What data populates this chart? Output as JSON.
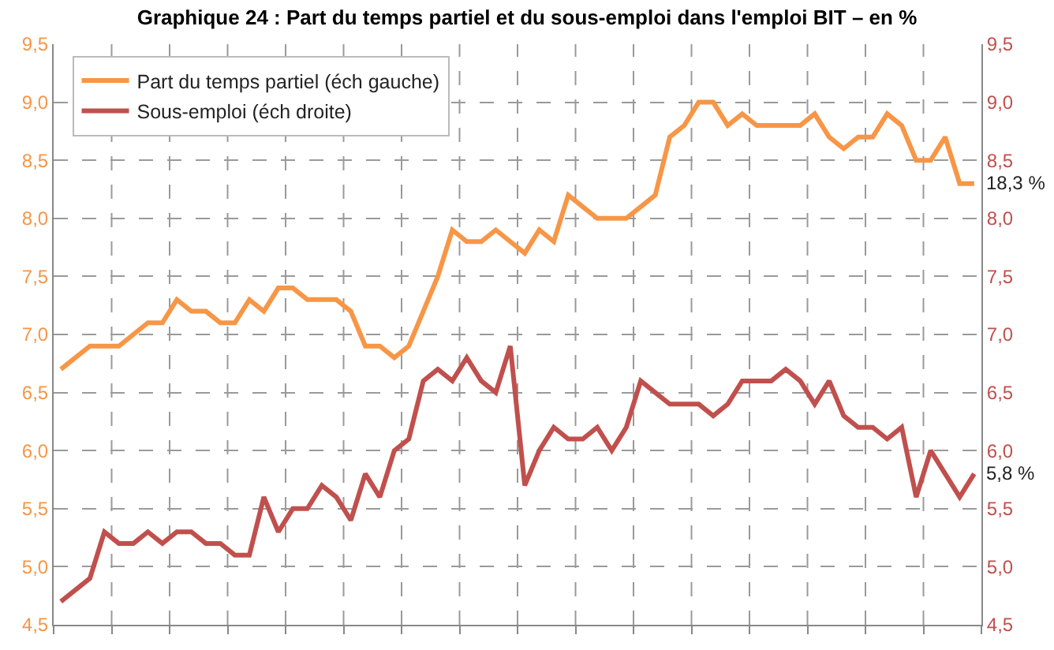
{
  "chart_data": {
    "type": "line",
    "title": "Graphique 24 : Part du temps partiel et du sous-emploi dans l'emploi BIT – en %",
    "categories": [
      null,
      null,
      null,
      null,
      null,
      null,
      null,
      null,
      null,
      null,
      null,
      null,
      null,
      null,
      null,
      null,
      null,
      null,
      null,
      null,
      null,
      null,
      null,
      null,
      null,
      null,
      null,
      null,
      null,
      null,
      null,
      null,
      null,
      null,
      null,
      null,
      null,
      null,
      null,
      null,
      null,
      null,
      null,
      null,
      null,
      null,
      null,
      null,
      null,
      null,
      null,
      null,
      null,
      null,
      null,
      null,
      null,
      null,
      null,
      null,
      null,
      null,
      null,
      null
    ],
    "series": [
      {
        "name": "Part du temps partiel (éch gauche)",
        "color": "#f79646",
        "values": [
          6.7,
          6.8,
          6.9,
          6.9,
          6.9,
          7.0,
          7.1,
          7.1,
          7.3,
          7.2,
          7.2,
          7.1,
          7.1,
          7.3,
          7.2,
          7.4,
          7.4,
          7.3,
          7.3,
          7.3,
          7.2,
          6.9,
          6.9,
          6.8,
          6.9,
          7.2,
          7.5,
          7.9,
          7.8,
          7.8,
          7.9,
          7.8,
          7.7,
          7.9,
          7.8,
          8.2,
          8.1,
          8.0,
          8.0,
          8.0,
          8.1,
          8.2,
          8.7,
          8.8,
          9.0,
          9.0,
          8.8,
          8.9,
          8.8,
          8.8,
          8.8,
          8.8,
          8.9,
          8.7,
          8.6,
          8.7,
          8.7,
          8.9,
          8.8,
          8.5,
          8.5,
          8.7,
          8.3,
          8.3
        ]
      },
      {
        "name": "Sous-emploi (éch droite)",
        "color": "#c0504d",
        "axis": "y2",
        "values": [
          4.7,
          4.8,
          4.9,
          5.3,
          5.2,
          5.2,
          5.3,
          5.2,
          5.3,
          5.3,
          5.2,
          5.2,
          5.1,
          5.1,
          5.6,
          5.3,
          5.5,
          5.5,
          5.7,
          5.6,
          5.4,
          5.8,
          5.6,
          6.0,
          6.1,
          6.6,
          6.7,
          6.6,
          6.8,
          6.6,
          6.5,
          6.9,
          5.7,
          6.0,
          6.2,
          6.1,
          6.1,
          6.2,
          6.0,
          6.2,
          6.6,
          6.5,
          6.4,
          6.4,
          6.4,
          6.3,
          6.4,
          6.6,
          6.6,
          6.6,
          6.7,
          6.6,
          6.4,
          6.6,
          6.3,
          6.2,
          6.2,
          6.1,
          6.2,
          5.6,
          6.0,
          5.8,
          5.6,
          5.8
        ]
      }
    ],
    "annotations": [
      "18,3 %",
      "5,8 %"
    ],
    "ylim": [
      4.5,
      9.5
    ],
    "yticks": [
      {
        "value": 4.5,
        "label": "4,5"
      },
      {
        "value": 5,
        "label": "5,0"
      },
      {
        "value": 5.5,
        "label": "5,5"
      },
      {
        "value": 6,
        "label": "6,0"
      },
      {
        "value": 6.5,
        "label": "6,5"
      },
      {
        "value": 7,
        "label": "7,0"
      },
      {
        "value": 7.5,
        "label": "7,5"
      },
      {
        "value": 8,
        "label": "8,0"
      },
      {
        "value": 8.5,
        "label": "8,5"
      },
      {
        "value": 9,
        "label": "9,0"
      },
      {
        "value": 9.5,
        "label": "9,5"
      }
    ],
    "y2lim": [
      4.5,
      9.5
    ],
    "y2ticks": [
      {
        "value": 4.5,
        "label": "4,5"
      },
      {
        "value": 5,
        "label": "5,0"
      },
      {
        "value": 5.5,
        "label": "5,5"
      },
      {
        "value": 6,
        "label": "6,0"
      },
      {
        "value": 6.5,
        "label": "6,5"
      },
      {
        "value": 7,
        "label": "7,0"
      },
      {
        "value": 7.5,
        "label": "7,5"
      },
      {
        "value": 8,
        "label": "8,0"
      },
      {
        "value": 8.5,
        "label": "8,5"
      },
      {
        "value": 9,
        "label": "9,0"
      },
      {
        "value": 9.5,
        "label": "9,5"
      }
    ],
    "grid": true,
    "legend": "top left",
    "marker": "none",
    "line_style": "solid"
  }
}
